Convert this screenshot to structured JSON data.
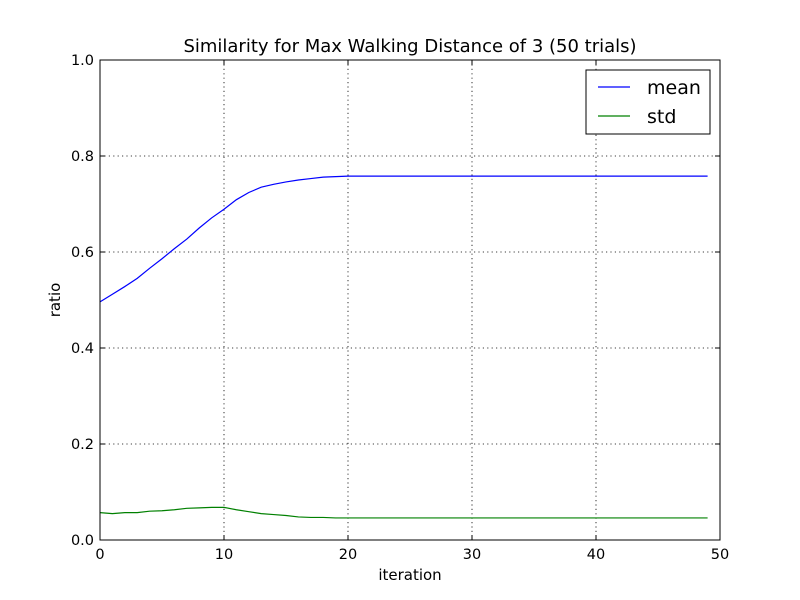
{
  "chart_data": {
    "type": "line",
    "title": "Similarity for Max Walking Distance of 3 (50 trials)",
    "xlabel": "iteration",
    "ylabel": "ratio",
    "xlim": [
      0,
      50
    ],
    "ylim": [
      0,
      1
    ],
    "xticks": [
      0,
      10,
      20,
      30,
      40,
      50
    ],
    "xtick_labels": [
      "0",
      "10",
      "20",
      "30",
      "40",
      "50"
    ],
    "yticks": [
      0,
      0.2,
      0.4,
      0.6,
      0.8,
      1.0
    ],
    "ytick_labels": [
      "0.0",
      "0.2",
      "0.4",
      "0.6",
      "0.8",
      "1.0"
    ],
    "grid": true,
    "legend_position": "top-right",
    "x": [
      0,
      1,
      2,
      3,
      4,
      5,
      6,
      7,
      8,
      9,
      10,
      11,
      12,
      13,
      14,
      15,
      16,
      17,
      18,
      19,
      20,
      21,
      22,
      23,
      24,
      25,
      26,
      27,
      28,
      29,
      30,
      31,
      32,
      33,
      34,
      35,
      36,
      37,
      38,
      39,
      40,
      41,
      42,
      43,
      44,
      45,
      46,
      47,
      48,
      49
    ],
    "series": [
      {
        "name": "mean",
        "color": "#0000ff",
        "values": [
          0.496,
          0.512,
          0.528,
          0.545,
          0.566,
          0.586,
          0.607,
          0.627,
          0.65,
          0.671,
          0.689,
          0.709,
          0.724,
          0.735,
          0.741,
          0.746,
          0.75,
          0.753,
          0.756,
          0.757,
          0.758,
          0.758,
          0.758,
          0.758,
          0.758,
          0.758,
          0.758,
          0.758,
          0.758,
          0.758,
          0.758,
          0.758,
          0.758,
          0.758,
          0.758,
          0.758,
          0.758,
          0.758,
          0.758,
          0.758,
          0.758,
          0.758,
          0.758,
          0.758,
          0.758,
          0.758,
          0.758,
          0.758,
          0.758,
          0.758
        ]
      },
      {
        "name": "std",
        "color": "#008000",
        "values": [
          0.057,
          0.055,
          0.057,
          0.057,
          0.06,
          0.061,
          0.063,
          0.066,
          0.067,
          0.068,
          0.068,
          0.063,
          0.059,
          0.055,
          0.053,
          0.051,
          0.048,
          0.047,
          0.047,
          0.046,
          0.046,
          0.046,
          0.046,
          0.046,
          0.046,
          0.046,
          0.046,
          0.046,
          0.046,
          0.046,
          0.046,
          0.046,
          0.046,
          0.046,
          0.046,
          0.046,
          0.046,
          0.046,
          0.046,
          0.046,
          0.046,
          0.046,
          0.046,
          0.046,
          0.046,
          0.046,
          0.046,
          0.046,
          0.046,
          0.046
        ]
      }
    ]
  }
}
